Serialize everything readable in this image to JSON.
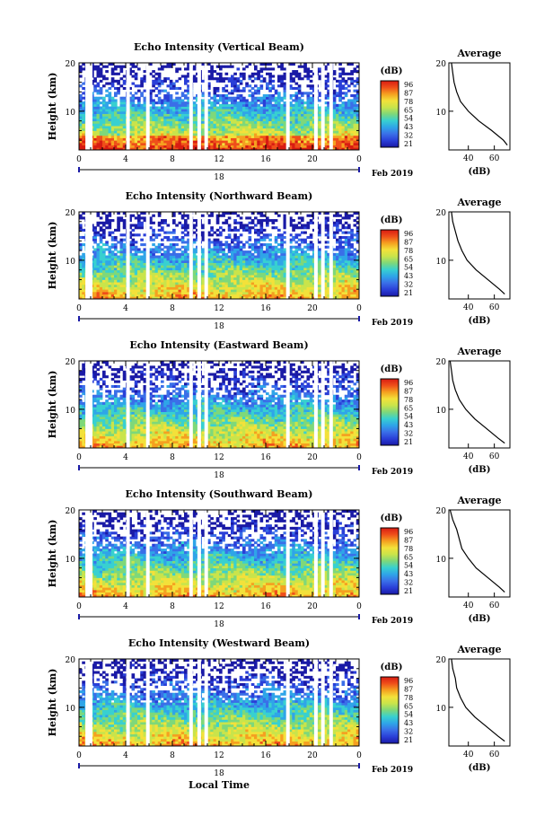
{
  "figure": {
    "date_label": "Feb 2019",
    "x_axis_title": "Local Time",
    "day_label": "18",
    "x_ticks": [
      "0",
      "4",
      "8",
      "12",
      "16",
      "20",
      "0"
    ],
    "y_label": "Height (km)",
    "y_ticks": [
      "20",
      "10"
    ],
    "colorbar_unit": "(dB)",
    "colorbar_ticks": [
      "96",
      "87",
      "78",
      "65",
      "54",
      "43",
      "32",
      "21"
    ],
    "profile_title": "Average",
    "profile_xlabel": "(dB)",
    "colors": {
      "colormap": [
        "#1a1aa6",
        "#2a3fd8",
        "#3a6fe8",
        "#2fa5e8",
        "#38d0d0",
        "#7ed87a",
        "#c9e44b",
        "#f3e13a",
        "#f5a020",
        "#ef4f1a",
        "#d81c12"
      ],
      "missing": "#ffffff"
    }
  },
  "chart_data": [
    {
      "type": "heatmap",
      "title": "Echo Intensity (Vertical Beam)",
      "xlabel": "",
      "ylabel": "Height (km)",
      "xlim": [
        0,
        24
      ],
      "ylim": [
        2,
        20
      ],
      "colorbar": {
        "unit": "dB",
        "range": [
          21,
          96
        ],
        "ticks": [
          96,
          87,
          78,
          65,
          54,
          43,
          32,
          21
        ]
      },
      "data_gaps_hours": [
        0.7,
        1.0,
        4.2,
        5.9,
        9.6,
        10.3,
        10.9,
        17.9,
        20.3,
        20.9,
        21.6
      ],
      "average_profile": {
        "title": "Average",
        "xlabel": "(dB)",
        "xticks": [
          40,
          60
        ],
        "height_km": [
          3,
          4,
          6,
          8,
          10,
          12,
          14,
          16,
          18,
          20
        ],
        "db": [
          70,
          67,
          58,
          48,
          40,
          34,
          31,
          29,
          28,
          27
        ]
      }
    },
    {
      "type": "heatmap",
      "title": "Echo Intensity (Northward Beam)",
      "xlabel": "",
      "ylabel": "Height (km)",
      "xlim": [
        0,
        24
      ],
      "ylim": [
        2,
        20
      ],
      "colorbar": {
        "unit": "dB",
        "range": [
          21,
          96
        ],
        "ticks": [
          96,
          87,
          78,
          65,
          54,
          43,
          32,
          21
        ]
      },
      "data_gaps_hours": [
        0.7,
        1.0,
        4.2,
        5.9,
        9.6,
        10.3,
        10.9,
        17.9,
        20.3,
        20.9,
        21.6
      ],
      "average_profile": {
        "title": "Average",
        "xlabel": "(dB)",
        "xticks": [
          40,
          60
        ],
        "height_km": [
          3,
          4,
          6,
          8,
          10,
          12,
          14,
          16,
          18,
          20
        ],
        "db": [
          68,
          64,
          55,
          46,
          39,
          35,
          32,
          30,
          28,
          27
        ]
      }
    },
    {
      "type": "heatmap",
      "title": "Echo Intensity (Eastward Beam)",
      "xlabel": "",
      "ylabel": "Height (km)",
      "xlim": [
        0,
        24
      ],
      "ylim": [
        2,
        20
      ],
      "colorbar": {
        "unit": "dB",
        "range": [
          21,
          96
        ],
        "ticks": [
          96,
          87,
          78,
          65,
          54,
          43,
          32,
          21
        ]
      },
      "data_gaps_hours": [
        0.7,
        1.0,
        4.2,
        5.9,
        9.6,
        10.3,
        10.9,
        17.9,
        20.3,
        20.9,
        21.6
      ],
      "average_profile": {
        "title": "Average",
        "xlabel": "(dB)",
        "xticks": [
          40,
          60
        ],
        "height_km": [
          3,
          4,
          6,
          8,
          10,
          12,
          14,
          16,
          18,
          20
        ],
        "db": [
          68,
          63,
          54,
          45,
          38,
          33,
          30,
          28,
          27,
          26
        ]
      }
    },
    {
      "type": "heatmap",
      "title": "Echo Intensity (Southward Beam)",
      "xlabel": "",
      "ylabel": "Height (km)",
      "xlim": [
        0,
        24
      ],
      "ylim": [
        2,
        20
      ],
      "colorbar": {
        "unit": "dB",
        "range": [
          21,
          96
        ],
        "ticks": [
          96,
          87,
          78,
          65,
          54,
          43,
          32,
          21
        ]
      },
      "data_gaps_hours": [
        0.7,
        1.0,
        4.2,
        5.9,
        9.6,
        10.3,
        10.9,
        17.9,
        20.3,
        20.9,
        21.6
      ],
      "average_profile": {
        "title": "Average",
        "xlabel": "(dB)",
        "xticks": [
          40,
          60
        ],
        "height_km": [
          3,
          4,
          6,
          8,
          10,
          12,
          14,
          16,
          18,
          20
        ],
        "db": [
          68,
          64,
          55,
          46,
          40,
          35,
          33,
          31,
          28,
          26
        ]
      }
    },
    {
      "type": "heatmap",
      "title": "Echo Intensity (Westward Beam)",
      "xlabel": "Local Time",
      "ylabel": "Height (km)",
      "xlim": [
        0,
        24
      ],
      "ylim": [
        2,
        20
      ],
      "colorbar": {
        "unit": "dB",
        "range": [
          21,
          96
        ],
        "ticks": [
          96,
          87,
          78,
          65,
          54,
          43,
          32,
          21
        ]
      },
      "data_gaps_hours": [
        0.7,
        1.0,
        4.2,
        5.9,
        9.6,
        10.3,
        10.9,
        17.9,
        20.3,
        20.9,
        21.6
      ],
      "average_profile": {
        "title": "Average",
        "xlabel": "(dB)",
        "xticks": [
          40,
          60
        ],
        "height_km": [
          3,
          4,
          6,
          8,
          10,
          12,
          14,
          16,
          18,
          20
        ],
        "db": [
          68,
          63,
          54,
          45,
          38,
          34,
          31,
          30,
          28,
          27
        ]
      }
    }
  ]
}
